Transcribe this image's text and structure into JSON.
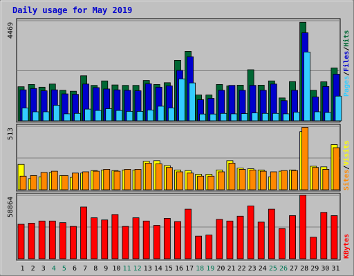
{
  "chart_data": [
    {
      "type": "bar",
      "title": "Daily usage for May 2019",
      "y_max_label": "4469",
      "ylim": [
        0,
        4469
      ],
      "grid": true,
      "categories": [
        "1",
        "2",
        "3",
        "4",
        "5",
        "6",
        "7",
        "8",
        "9",
        "10",
        "11",
        "12",
        "13",
        "14",
        "15",
        "16",
        "17",
        "18",
        "19",
        "20",
        "21",
        "22",
        "23",
        "24",
        "25",
        "26",
        "27",
        "28",
        "29",
        "30",
        "31"
      ],
      "weekend_days": [
        "4",
        "5",
        "11",
        "12",
        "18",
        "19",
        "25",
        "26"
      ],
      "series": [
        {
          "name": "Hits",
          "color": "#006633",
          "values": [
            1520,
            1620,
            1500,
            1640,
            1360,
            1320,
            2010,
            1580,
            1780,
            1600,
            1580,
            1580,
            1800,
            1620,
            1700,
            2700,
            3100,
            1150,
            1150,
            1620,
            1560,
            1590,
            2280,
            1590,
            1780,
            1020,
            1750,
            4400,
            1360,
            1740,
            2360
          ]
        },
        {
          "name": "Files",
          "color": "#0000cc",
          "values": [
            1380,
            1440,
            1340,
            1380,
            1200,
            1180,
            1640,
            1480,
            1420,
            1380,
            1360,
            1340,
            1650,
            1500,
            1560,
            2250,
            2860,
            940,
            1000,
            1360,
            1580,
            1360,
            1580,
            1360,
            1640,
            900,
            1360,
            3930,
            1060,
            1530,
            2080
          ]
        },
        {
          "name": "Pages",
          "color": "#33ccff",
          "values": [
            570,
            400,
            400,
            690,
            310,
            330,
            520,
            460,
            540,
            460,
            420,
            420,
            480,
            650,
            570,
            1870,
            1690,
            300,
            300,
            330,
            310,
            320,
            350,
            330,
            330,
            310,
            380,
            3070,
            400,
            370,
            1100
          ]
        }
      ]
    },
    {
      "type": "bar",
      "y_max_label": "513",
      "ylim": [
        0,
        513
      ],
      "grid": true,
      "categories": [
        "1",
        "2",
        "3",
        "4",
        "5",
        "6",
        "7",
        "8",
        "9",
        "10",
        "11",
        "12",
        "13",
        "14",
        "15",
        "16",
        "17",
        "18",
        "19",
        "20",
        "21",
        "22",
        "23",
        "24",
        "25",
        "26",
        "27",
        "28",
        "29",
        "30",
        "31"
      ],
      "series": [
        {
          "name": "Visits",
          "color": "#ffff00",
          "values": [
            205,
            90,
            105,
            140,
            115,
            100,
            135,
            155,
            160,
            155,
            160,
            160,
            230,
            235,
            195,
            160,
            155,
            125,
            125,
            160,
            235,
            175,
            170,
            160,
            105,
            150,
            160,
            470,
            190,
            185,
            365
          ]
        },
        {
          "name": "Sites",
          "color": "#ff8800",
          "values": [
            110,
            115,
            140,
            150,
            115,
            135,
            145,
            150,
            165,
            150,
            165,
            165,
            215,
            210,
            180,
            145,
            135,
            110,
            110,
            145,
            215,
            165,
            160,
            150,
            145,
            155,
            155,
            505,
            180,
            165,
            340
          ]
        }
      ]
    },
    {
      "type": "bar",
      "y_max_label": "58864",
      "ylim": [
        0,
        58864
      ],
      "grid": true,
      "categories": [
        "1",
        "2",
        "3",
        "4",
        "5",
        "6",
        "7",
        "8",
        "9",
        "10",
        "11",
        "12",
        "13",
        "14",
        "15",
        "16",
        "17",
        "18",
        "19",
        "20",
        "21",
        "22",
        "23",
        "24",
        "25",
        "26",
        "27",
        "28",
        "29",
        "30",
        "31"
      ],
      "series": [
        {
          "name": "KBytes",
          "color": "#ff0000",
          "values": [
            32000,
            33000,
            35000,
            35000,
            33500,
            30000,
            48000,
            38000,
            36000,
            41000,
            30000,
            38000,
            35000,
            31000,
            37500,
            34500,
            46000,
            21000,
            22000,
            36500,
            35000,
            39500,
            49000,
            34000,
            46000,
            28000,
            40000,
            58864,
            20000,
            43000,
            40000
          ]
        }
      ]
    }
  ],
  "side_labels": {
    "top": [
      {
        "text": "Pages",
        "color": "#33ccff"
      },
      {
        "text": "/",
        "color": "#000000"
      },
      {
        "text": "Files",
        "color": "#0000cc"
      },
      {
        "text": "/",
        "color": "#000000"
      },
      {
        "text": "Hits",
        "color": "#006633"
      }
    ],
    "middle": [
      {
        "text": "Sites",
        "color": "#ff8800"
      },
      {
        "text": "/",
        "color": "#000000"
      },
      {
        "text": "Visits",
        "color": "#ffff00"
      }
    ],
    "bottom": [
      {
        "text": "KBytes",
        "color": "#ff0000"
      }
    ]
  },
  "colors": {
    "background": "#c0c0c0",
    "panel": "#c0c0c0",
    "title": "#0000cc",
    "weekday_label": "#000000",
    "weekend_label": "#007755"
  }
}
